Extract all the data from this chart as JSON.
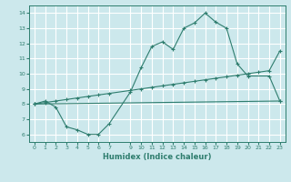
{
  "title": "",
  "xlabel": "Humidex (Indice chaleur)",
  "ylabel": "",
  "bg_color": "#cce8ec",
  "grid_color": "#ffffff",
  "line_color": "#2e7d6e",
  "xlim": [
    -0.5,
    23.5
  ],
  "ylim": [
    5.5,
    14.5
  ],
  "xticks": [
    0,
    1,
    2,
    3,
    4,
    5,
    6,
    7,
    9,
    10,
    11,
    12,
    13,
    14,
    15,
    16,
    17,
    18,
    19,
    20,
    21,
    22,
    23
  ],
  "yticks": [
    6,
    7,
    8,
    9,
    10,
    11,
    12,
    13,
    14
  ],
  "curve1_x": [
    0,
    1,
    2,
    3,
    4,
    5,
    6,
    7,
    9,
    10,
    11,
    12,
    13,
    14,
    15,
    16,
    17,
    18,
    19,
    20,
    22,
    23
  ],
  "curve1_y": [
    8.0,
    8.2,
    7.8,
    6.5,
    6.3,
    6.0,
    6.0,
    6.7,
    8.8,
    10.4,
    11.8,
    12.1,
    11.6,
    13.0,
    13.35,
    14.0,
    13.4,
    13.0,
    10.65,
    9.85,
    9.85,
    8.2
  ],
  "curve2_x": [
    0,
    1,
    2,
    3,
    4,
    5,
    6,
    7,
    9,
    10,
    11,
    12,
    13,
    14,
    15,
    16,
    17,
    18,
    19,
    20,
    21,
    22,
    23
  ],
  "curve2_y": [
    8.0,
    8.1,
    8.2,
    8.3,
    8.4,
    8.5,
    8.6,
    8.7,
    8.9,
    9.0,
    9.1,
    9.2,
    9.3,
    9.4,
    9.5,
    9.6,
    9.7,
    9.8,
    9.9,
    10.0,
    10.1,
    10.2,
    11.5
  ],
  "curve3_x": [
    0,
    23
  ],
  "curve3_y": [
    8.0,
    8.2
  ]
}
